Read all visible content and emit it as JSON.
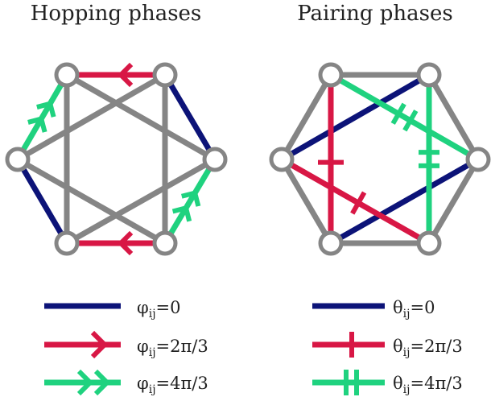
{
  "titles": {
    "left": "Hopping phases",
    "right": "Pairing phases"
  },
  "colors": {
    "gray": "#858585",
    "navy": "#0c1378",
    "red": "#d81745",
    "green": "#1fd27f",
    "node_fill": "#ffffff"
  },
  "legend": {
    "left": [
      {
        "symbol": "φ",
        "sub": "ij",
        "value": "=0",
        "style": "plain",
        "color": "navy"
      },
      {
        "symbol": "φ",
        "sub": "ij",
        "value": "=2π/3",
        "style": "single-arrow",
        "color": "red"
      },
      {
        "symbol": "φ",
        "sub": "ij",
        "value": "=4π/3",
        "style": "double-arrow",
        "color": "green"
      }
    ],
    "right": [
      {
        "symbol": "θ",
        "sub": "ij",
        "value": "=0",
        "style": "plain",
        "color": "navy"
      },
      {
        "symbol": "θ",
        "sub": "ij",
        "value": "=2π/3",
        "style": "single-tick",
        "color": "red"
      },
      {
        "symbol": "θ",
        "sub": "ij",
        "value": "=4π/3",
        "style": "double-tick",
        "color": "green"
      }
    ]
  }
}
